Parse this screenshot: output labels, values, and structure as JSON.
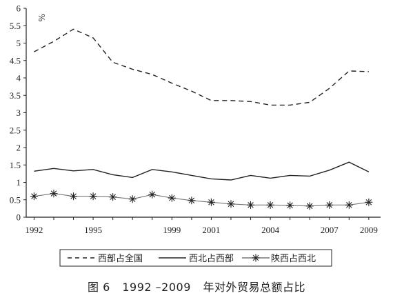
{
  "chart_data": {
    "type": "line",
    "x": [
      1992,
      1993,
      1994,
      1995,
      1996,
      1997,
      1998,
      1999,
      2000,
      2001,
      2002,
      2003,
      2004,
      2005,
      2006,
      2007,
      2008,
      2009
    ],
    "x_tick_labels": [
      "1992",
      "1995",
      "1999",
      "2001",
      "2004",
      "2007",
      "2009"
    ],
    "y_unit": "%",
    "ylim": [
      0,
      6
    ],
    "y_ticks": [
      "0",
      "0.5",
      "1",
      "1.5",
      "2",
      "2.5",
      "3",
      "3.5",
      "4",
      "4.5",
      "5",
      "5.5",
      "6"
    ],
    "grid": false,
    "legend_position": "bottom",
    "series": [
      {
        "name": "西部占全国",
        "style": "dashed",
        "values": [
          4.75,
          5.05,
          5.4,
          5.15,
          4.45,
          4.25,
          4.1,
          3.85,
          3.62,
          3.35,
          3.35,
          3.32,
          3.22,
          3.22,
          3.3,
          3.7,
          4.2,
          4.18
        ]
      },
      {
        "name": "西北占西部",
        "style": "solid",
        "values": [
          1.32,
          1.4,
          1.33,
          1.37,
          1.22,
          1.14,
          1.37,
          1.3,
          1.2,
          1.1,
          1.07,
          1.2,
          1.12,
          1.2,
          1.18,
          1.35,
          1.58,
          1.3
        ]
      },
      {
        "name": "陕西占西北",
        "style": "asterisk",
        "values": [
          0.6,
          0.68,
          0.6,
          0.6,
          0.58,
          0.52,
          0.65,
          0.55,
          0.48,
          0.43,
          0.38,
          0.35,
          0.35,
          0.34,
          0.32,
          0.35,
          0.35,
          0.43
        ]
      }
    ]
  },
  "caption": {
    "figure_label": "图 6",
    "years": "1992 –2009",
    "text": "年对外贸易总额占比"
  },
  "colors": {
    "line": "#222222",
    "background": "#ffffff"
  }
}
